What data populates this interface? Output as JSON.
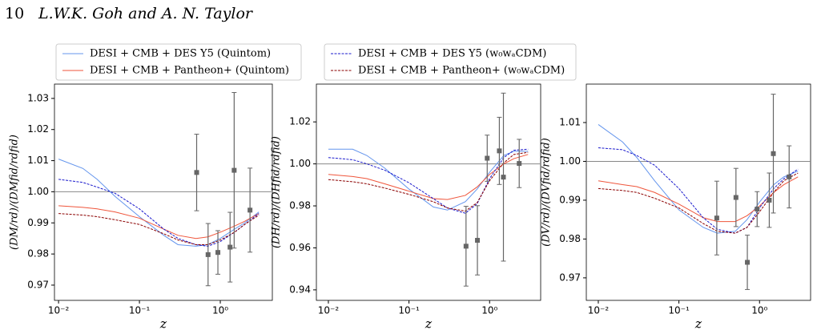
{
  "header": {
    "page_number": "10",
    "authors": "L.W.K. Goh and A. N. Taylor"
  },
  "chart_data": [
    {
      "type": "line",
      "xlabel": "z",
      "ylabel": "(DM/rd)/(DMfid/rdfid)",
      "log_x": true,
      "xlim": [
        0.0089,
        4.4
      ],
      "ylim": [
        0.9651,
        1.0346
      ],
      "xticks": [
        {
          "value": 0.01,
          "label": "10⁻²"
        },
        {
          "value": 0.1,
          "label": "10⁻¹"
        },
        {
          "value": 1,
          "label": "10⁰"
        }
      ],
      "yticks": [
        0.97,
        0.98,
        0.99,
        {
          "value": 1,
          "label": "1.00"
        },
        1.01,
        1.02,
        1.03
      ],
      "hline": 1,
      "x": [
        0.01,
        0.02,
        0.03,
        0.05,
        0.1,
        0.2,
        0.3,
        0.5,
        0.7,
        1,
        1.5,
        2,
        3
      ],
      "series": [
        {
          "name": "DESI + CMB + DES Y5 (Quintom)",
          "color": "#6495ed",
          "linestyle": "solid",
          "values": [
            1.0105,
            1.0075,
            1.004,
            0.9985,
            0.992,
            0.986,
            0.983,
            0.9825,
            0.983,
            0.985,
            0.988,
            0.99,
            0.9935
          ]
        },
        {
          "name": "DESI + CMB + Pantheon+ (Quintom)",
          "color": "#ef553b",
          "linestyle": "solid",
          "values": [
            0.9955,
            0.995,
            0.9945,
            0.9935,
            0.9915,
            0.988,
            0.986,
            0.985,
            0.9855,
            0.987,
            0.989,
            0.9905,
            0.993
          ]
        },
        {
          "name": "DESI + CMB + DES Y5 (w₀wₐCDM)",
          "color": "#1a1acd",
          "linestyle": "dashed",
          "values": [
            1.004,
            1.003,
            1.0015,
            0.9995,
            0.9945,
            0.988,
            0.985,
            0.983,
            0.9825,
            0.984,
            0.987,
            0.9895,
            0.993
          ]
        },
        {
          "name": "DESI + CMB + Pantheon+ (w₀wₐCDM)",
          "color": "#8b0000",
          "linestyle": "dashed",
          "values": [
            0.993,
            0.9925,
            0.992,
            0.991,
            0.9895,
            0.9865,
            0.9845,
            0.983,
            0.983,
            0.9845,
            0.987,
            0.9895,
            0.9925
          ]
        }
      ],
      "points": {
        "color": "#666666",
        "x": [
          0.51,
          0.706,
          0.934,
          1.321,
          1.484,
          2.33
        ],
        "values": [
          1.0062,
          0.9798,
          0.9805,
          0.9822,
          1.0069,
          0.9941
        ],
        "errors": [
          0.0123,
          0.01,
          0.007,
          0.0112,
          0.025,
          0.0135
        ]
      }
    },
    {
      "type": "line",
      "xlabel": "z",
      "ylabel": "(DH/rd)/(DHfid/rdfid)",
      "log_x": true,
      "xlim": [
        0.0071,
        4.3
      ],
      "ylim": [
        0.935,
        1.038
      ],
      "xticks": [
        {
          "value": 0.01,
          "label": "10⁻²"
        },
        {
          "value": 0.1,
          "label": "10⁻¹"
        },
        {
          "value": 1,
          "label": "10⁰"
        }
      ],
      "yticks": [
        0.94,
        0.96,
        0.98,
        {
          "value": 1,
          "label": "1.00"
        },
        1.02
      ],
      "hline": 1,
      "x": [
        0.01,
        0.02,
        0.03,
        0.05,
        0.1,
        0.2,
        0.3,
        0.5,
        0.7,
        1,
        1.5,
        2,
        3
      ],
      "series": [
        {
          "name": "DESI + CMB + DES Y5 (Quintom)",
          "color": "#6495ed",
          "linestyle": "solid",
          "values": [
            1.007,
            1.007,
            1.004,
            0.998,
            0.988,
            0.9795,
            0.978,
            0.982,
            0.988,
            0.996,
            1.004,
            1.006,
            1.006
          ]
        },
        {
          "name": "DESI + CMB + Pantheon+ (Quintom)",
          "color": "#ef553b",
          "linestyle": "solid",
          "values": [
            0.995,
            0.994,
            0.993,
            0.9905,
            0.987,
            0.9835,
            0.983,
            0.985,
            0.989,
            0.995,
            1.0,
            1.0025,
            1.0045
          ]
        },
        {
          "name": "DESI + CMB + DES Y5 (w₀wₐCDM)",
          "color": "#1a1acd",
          "linestyle": "dashed",
          "values": [
            1.003,
            1.002,
            1.0,
            0.997,
            0.991,
            0.9835,
            0.979,
            0.9765,
            0.981,
            0.993,
            1.003,
            1.0065,
            1.007
          ]
        },
        {
          "name": "DESI + CMB + Pantheon+ (w₀wₐCDM)",
          "color": "#8b0000",
          "linestyle": "dashed",
          "values": [
            0.9925,
            0.9915,
            0.9905,
            0.9885,
            0.9855,
            0.982,
            0.979,
            0.9775,
            0.9815,
            0.992,
            1.0005,
            1.0045,
            1.0055
          ]
        }
      ],
      "points": {
        "color": "#666666",
        "x": [
          0.51,
          0.706,
          0.934,
          1.321,
          1.484,
          2.33
        ],
        "values": [
          0.9608,
          0.9636,
          1.0027,
          1.0062,
          0.9937,
          1.0002
        ],
        "errors": [
          0.019,
          0.0165,
          0.011,
          0.016,
          0.04,
          0.0115
        ]
      }
    },
    {
      "type": "line",
      "xlabel": "z",
      "ylabel": "(DV/rd)/(DVfid/rdfid)",
      "log_x": true,
      "xlim": [
        0.0071,
        4.3
      ],
      "ylim": [
        0.9642,
        1.0199
      ],
      "xticks": [
        {
          "value": 0.01,
          "label": "10⁻²"
        },
        {
          "value": 0.1,
          "label": "10⁻¹"
        },
        {
          "value": 1,
          "label": "10⁰"
        }
      ],
      "yticks": [
        0.97,
        0.98,
        0.99,
        {
          "value": 1,
          "label": "1.00"
        },
        1.01
      ],
      "hline": 1,
      "x": [
        0.01,
        0.02,
        0.03,
        0.05,
        0.1,
        0.2,
        0.3,
        0.5,
        0.7,
        1,
        1.5,
        2,
        3
      ],
      "series": [
        {
          "name": "DESI + CMB + DES Y5 (Quintom)",
          "color": "#6495ed",
          "linestyle": "solid",
          "values": [
            1.0095,
            1.005,
            1.001,
            0.995,
            0.9875,
            0.983,
            0.9815,
            0.982,
            0.985,
            0.9895,
            0.994,
            0.996,
            0.9975
          ]
        },
        {
          "name": "DESI + CMB + Pantheon+ (Quintom)",
          "color": "#ef553b",
          "linestyle": "solid",
          "values": [
            0.995,
            0.994,
            0.9935,
            0.992,
            0.989,
            0.9855,
            0.9845,
            0.9845,
            0.986,
            0.9885,
            0.992,
            0.994,
            0.996
          ]
        },
        {
          "name": "DESI + CMB + DES Y5 (w₀wₐCDM)",
          "color": "#1a1acd",
          "linestyle": "dashed",
          "values": [
            1.0035,
            1.003,
            1.0015,
            0.999,
            0.993,
            0.9855,
            0.9825,
            0.9815,
            0.983,
            0.988,
            0.993,
            0.9955,
            0.998
          ]
        },
        {
          "name": "DESI + CMB + Pantheon+ (w₀wₐCDM)",
          "color": "#8b0000",
          "linestyle": "dashed",
          "values": [
            0.993,
            0.9925,
            0.992,
            0.9905,
            0.988,
            0.984,
            0.982,
            0.9815,
            0.983,
            0.987,
            0.992,
            0.995,
            0.997
          ]
        }
      ],
      "points": {
        "color": "#666666",
        "x": [
          0.295,
          0.51,
          0.706,
          0.934,
          1.321,
          1.484,
          2.33
        ],
        "values": [
          0.9854,
          0.9907,
          0.974,
          0.9877,
          0.99,
          1.002,
          0.996
        ],
        "errors": [
          0.0095,
          0.0075,
          0.007,
          0.0045,
          0.007,
          0.0153,
          0.008
        ]
      }
    }
  ]
}
